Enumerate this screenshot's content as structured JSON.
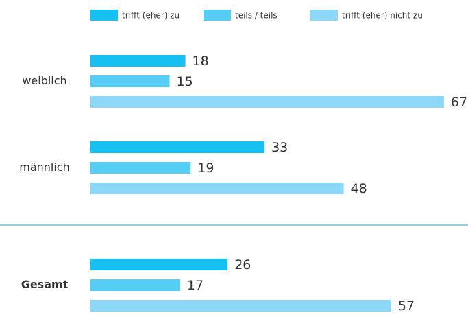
{
  "chart_data": {
    "type": "bar",
    "orientation": "horizontal",
    "categories": [
      "weiblich",
      "männlich",
      "Gesamt"
    ],
    "series": [
      {
        "name": "trifft (eher) zu",
        "color": "#16c0f0",
        "values": [
          18,
          33,
          26
        ]
      },
      {
        "name": "teils / teils",
        "color": "#55cdf4",
        "values": [
          15,
          19,
          17
        ]
      },
      {
        "name": "trifft (eher) nicht zu",
        "color": "#8ed8f7",
        "values": [
          67,
          48,
          57
        ]
      }
    ]
  }
}
